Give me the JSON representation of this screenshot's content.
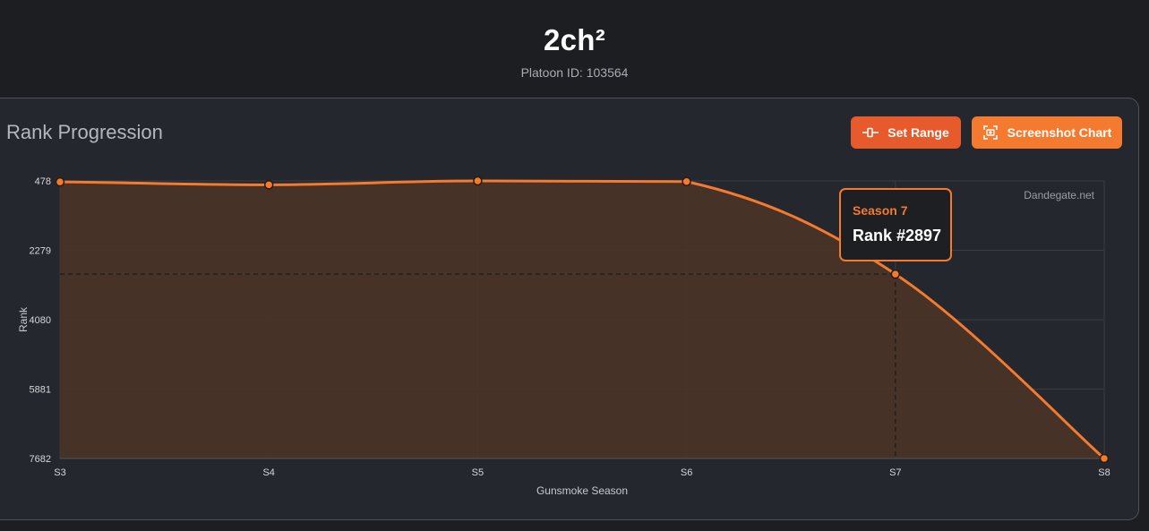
{
  "header": {
    "title": "2ch²",
    "subtitle": "Platoon ID: 103564"
  },
  "panel": {
    "title": "Rank Progression",
    "buttons": {
      "set_range": "Set Range",
      "screenshot": "Screenshot Chart"
    }
  },
  "tooltip": {
    "season": "Season 7",
    "rank": "Rank #2897"
  },
  "colors": {
    "accent": "#f37a2e",
    "accent_dark": "#e65a2c",
    "background": "#1c1e22",
    "panel": "#24272d",
    "area_fill": "#4a3326"
  },
  "icons": {
    "set_range": "range-slider-icon",
    "screenshot": "camera-frame-icon"
  },
  "chart_data": {
    "type": "area",
    "watermark": "Dandegate.net",
    "xlabel": "Gunsmoke Season",
    "ylabel": "Rank",
    "categories": [
      "S3",
      "S4",
      "S5",
      "S6",
      "S7",
      "S8"
    ],
    "y_ticks": [
      "478",
      "2279",
      "4080",
      "5881",
      "7682"
    ],
    "ylim": [
      478,
      7682
    ],
    "y_reversed": true,
    "grid": true,
    "series": [
      {
        "values": [
          505,
          580,
          478,
          495,
          2897,
          7682
        ]
      }
    ],
    "highlight_index": 4
  }
}
